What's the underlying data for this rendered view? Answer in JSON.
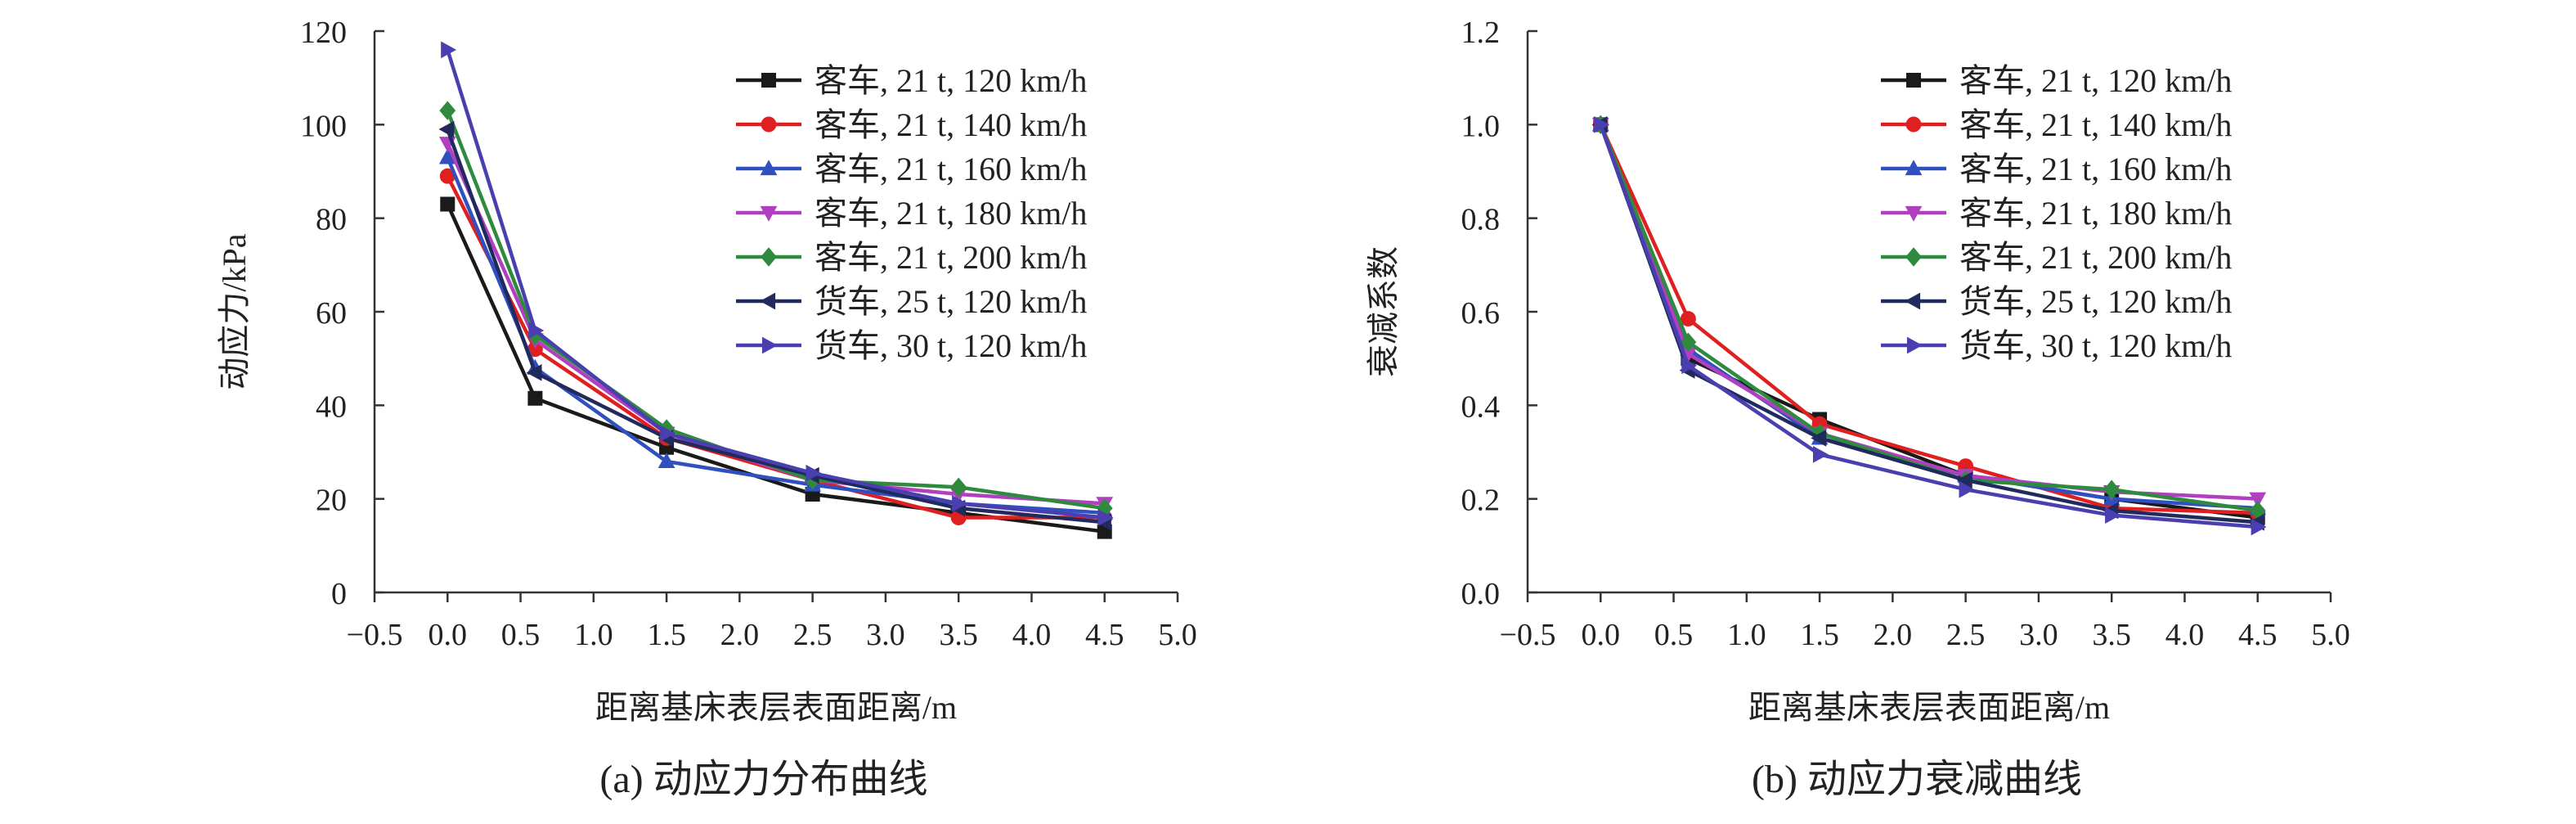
{
  "colors": {
    "series": [
      "#1a1a1a",
      "#e02020",
      "#3050c0",
      "#b040c0",
      "#2e8b3e",
      "#202a5c",
      "#4a3fb0"
    ],
    "axis": "#333333"
  },
  "markers": [
    "square",
    "circle",
    "triangle-up",
    "triangle-down",
    "diamond",
    "triangle-left",
    "triangle-right"
  ],
  "chart_data": [
    {
      "type": "line",
      "caption": "(a) 动应力分布曲线",
      "xlabel": "距离基床表层表面距离/m",
      "ylabel": "动应力/kPa",
      "xlim": [
        -0.5,
        5.0
      ],
      "ylim": [
        0,
        120
      ],
      "xticks": [
        "−0.5",
        "0.0",
        "0.5",
        "1.0",
        "1.5",
        "2.0",
        "2.5",
        "3.0",
        "3.5",
        "4.0",
        "4.5",
        "5.0"
      ],
      "yticks": [
        "0",
        "20",
        "40",
        "60",
        "80",
        "100",
        "120"
      ],
      "grid": false,
      "legend_position": "top-right",
      "x": [
        0.0,
        0.6,
        1.5,
        2.5,
        3.5,
        4.5
      ],
      "series": [
        {
          "name": "客车, 21 t, 120 km/h",
          "values": [
            83,
            41.5,
            31,
            21,
            17,
            13
          ]
        },
        {
          "name": "客车, 21 t, 140 km/h",
          "values": [
            89,
            52,
            33,
            24,
            16,
            16
          ]
        },
        {
          "name": "客车, 21 t, 160 km/h",
          "values": [
            93,
            48,
            28,
            23,
            19,
            17
          ]
        },
        {
          "name": "客车, 21 t, 180 km/h",
          "values": [
            96,
            54,
            34,
            24,
            21,
            19
          ]
        },
        {
          "name": "客车, 21 t, 200 km/h",
          "values": [
            103,
            55,
            35,
            24,
            22.5,
            18
          ]
        },
        {
          "name": "货车, 25 t, 120 km/h",
          "values": [
            99,
            47,
            33,
            25,
            18,
            15
          ]
        },
        {
          "name": "货车, 30 t, 120 km/h",
          "values": [
            116,
            56,
            34,
            25.5,
            19,
            16
          ]
        }
      ]
    },
    {
      "type": "line",
      "caption": "(b) 动应力衰减曲线",
      "xlabel": "距离基床表层表面距离/m",
      "ylabel": "衰减系数",
      "xlim": [
        -0.5,
        5.0
      ],
      "ylim": [
        0,
        1.2
      ],
      "xticks": [
        "−0.5",
        "0.0",
        "0.5",
        "1.0",
        "1.5",
        "2.0",
        "2.5",
        "3.0",
        "3.5",
        "4.0",
        "4.5",
        "5.0"
      ],
      "yticks": [
        "0.0",
        "0.2",
        "0.4",
        "0.6",
        "0.8",
        "1.0",
        "1.2"
      ],
      "grid": false,
      "legend_position": "top-right",
      "x": [
        0.0,
        0.6,
        1.5,
        2.5,
        3.5,
        4.5
      ],
      "series": [
        {
          "name": "客车, 21 t, 120 km/h",
          "values": [
            1.0,
            0.5,
            0.37,
            0.25,
            0.2,
            0.16
          ]
        },
        {
          "name": "客车, 21 t, 140 km/h",
          "values": [
            1.0,
            0.585,
            0.36,
            0.27,
            0.18,
            0.17
          ]
        },
        {
          "name": "客车, 21 t, 160 km/h",
          "values": [
            1.0,
            0.52,
            0.33,
            0.25,
            0.2,
            0.18
          ]
        },
        {
          "name": "客车, 21 t, 180 km/h",
          "values": [
            1.0,
            0.51,
            0.34,
            0.25,
            0.215,
            0.2
          ]
        },
        {
          "name": "客车, 21 t, 200 km/h",
          "values": [
            1.0,
            0.535,
            0.34,
            0.24,
            0.22,
            0.175
          ]
        },
        {
          "name": "货车, 25 t, 120 km/h",
          "values": [
            1.0,
            0.475,
            0.33,
            0.24,
            0.175,
            0.15
          ]
        },
        {
          "name": "货车, 30 t, 120 km/h",
          "values": [
            1.0,
            0.485,
            0.295,
            0.22,
            0.165,
            0.14
          ]
        }
      ]
    }
  ]
}
